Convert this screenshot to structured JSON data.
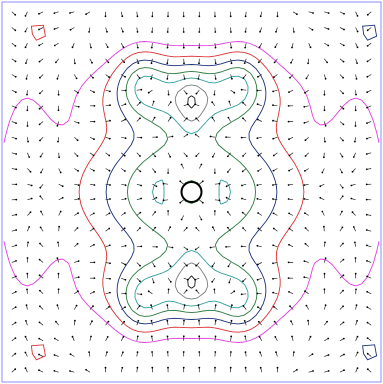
{
  "chart_data": {
    "type": "contour",
    "title": "",
    "xlabel": "",
    "ylabel": "",
    "grid": false,
    "legend": "none",
    "x_range": [
      -3,
      3
    ],
    "y_range": [
      -3,
      3
    ],
    "contour_levels": [
      0.08,
      0.18,
      0.3,
      0.42,
      0.54,
      0.66,
      0.78
    ],
    "contour_colors": [
      "#e040e0",
      "#d93030",
      "#1a2f7a",
      "#2a7a3a",
      "#2f9f9a",
      "#7a7a7a",
      "#1a1a1a"
    ],
    "arrow_grid_rows": 24,
    "arrow_grid_cols": 24,
    "frame_color": "#8c8cff",
    "marker_color": "#000000"
  }
}
